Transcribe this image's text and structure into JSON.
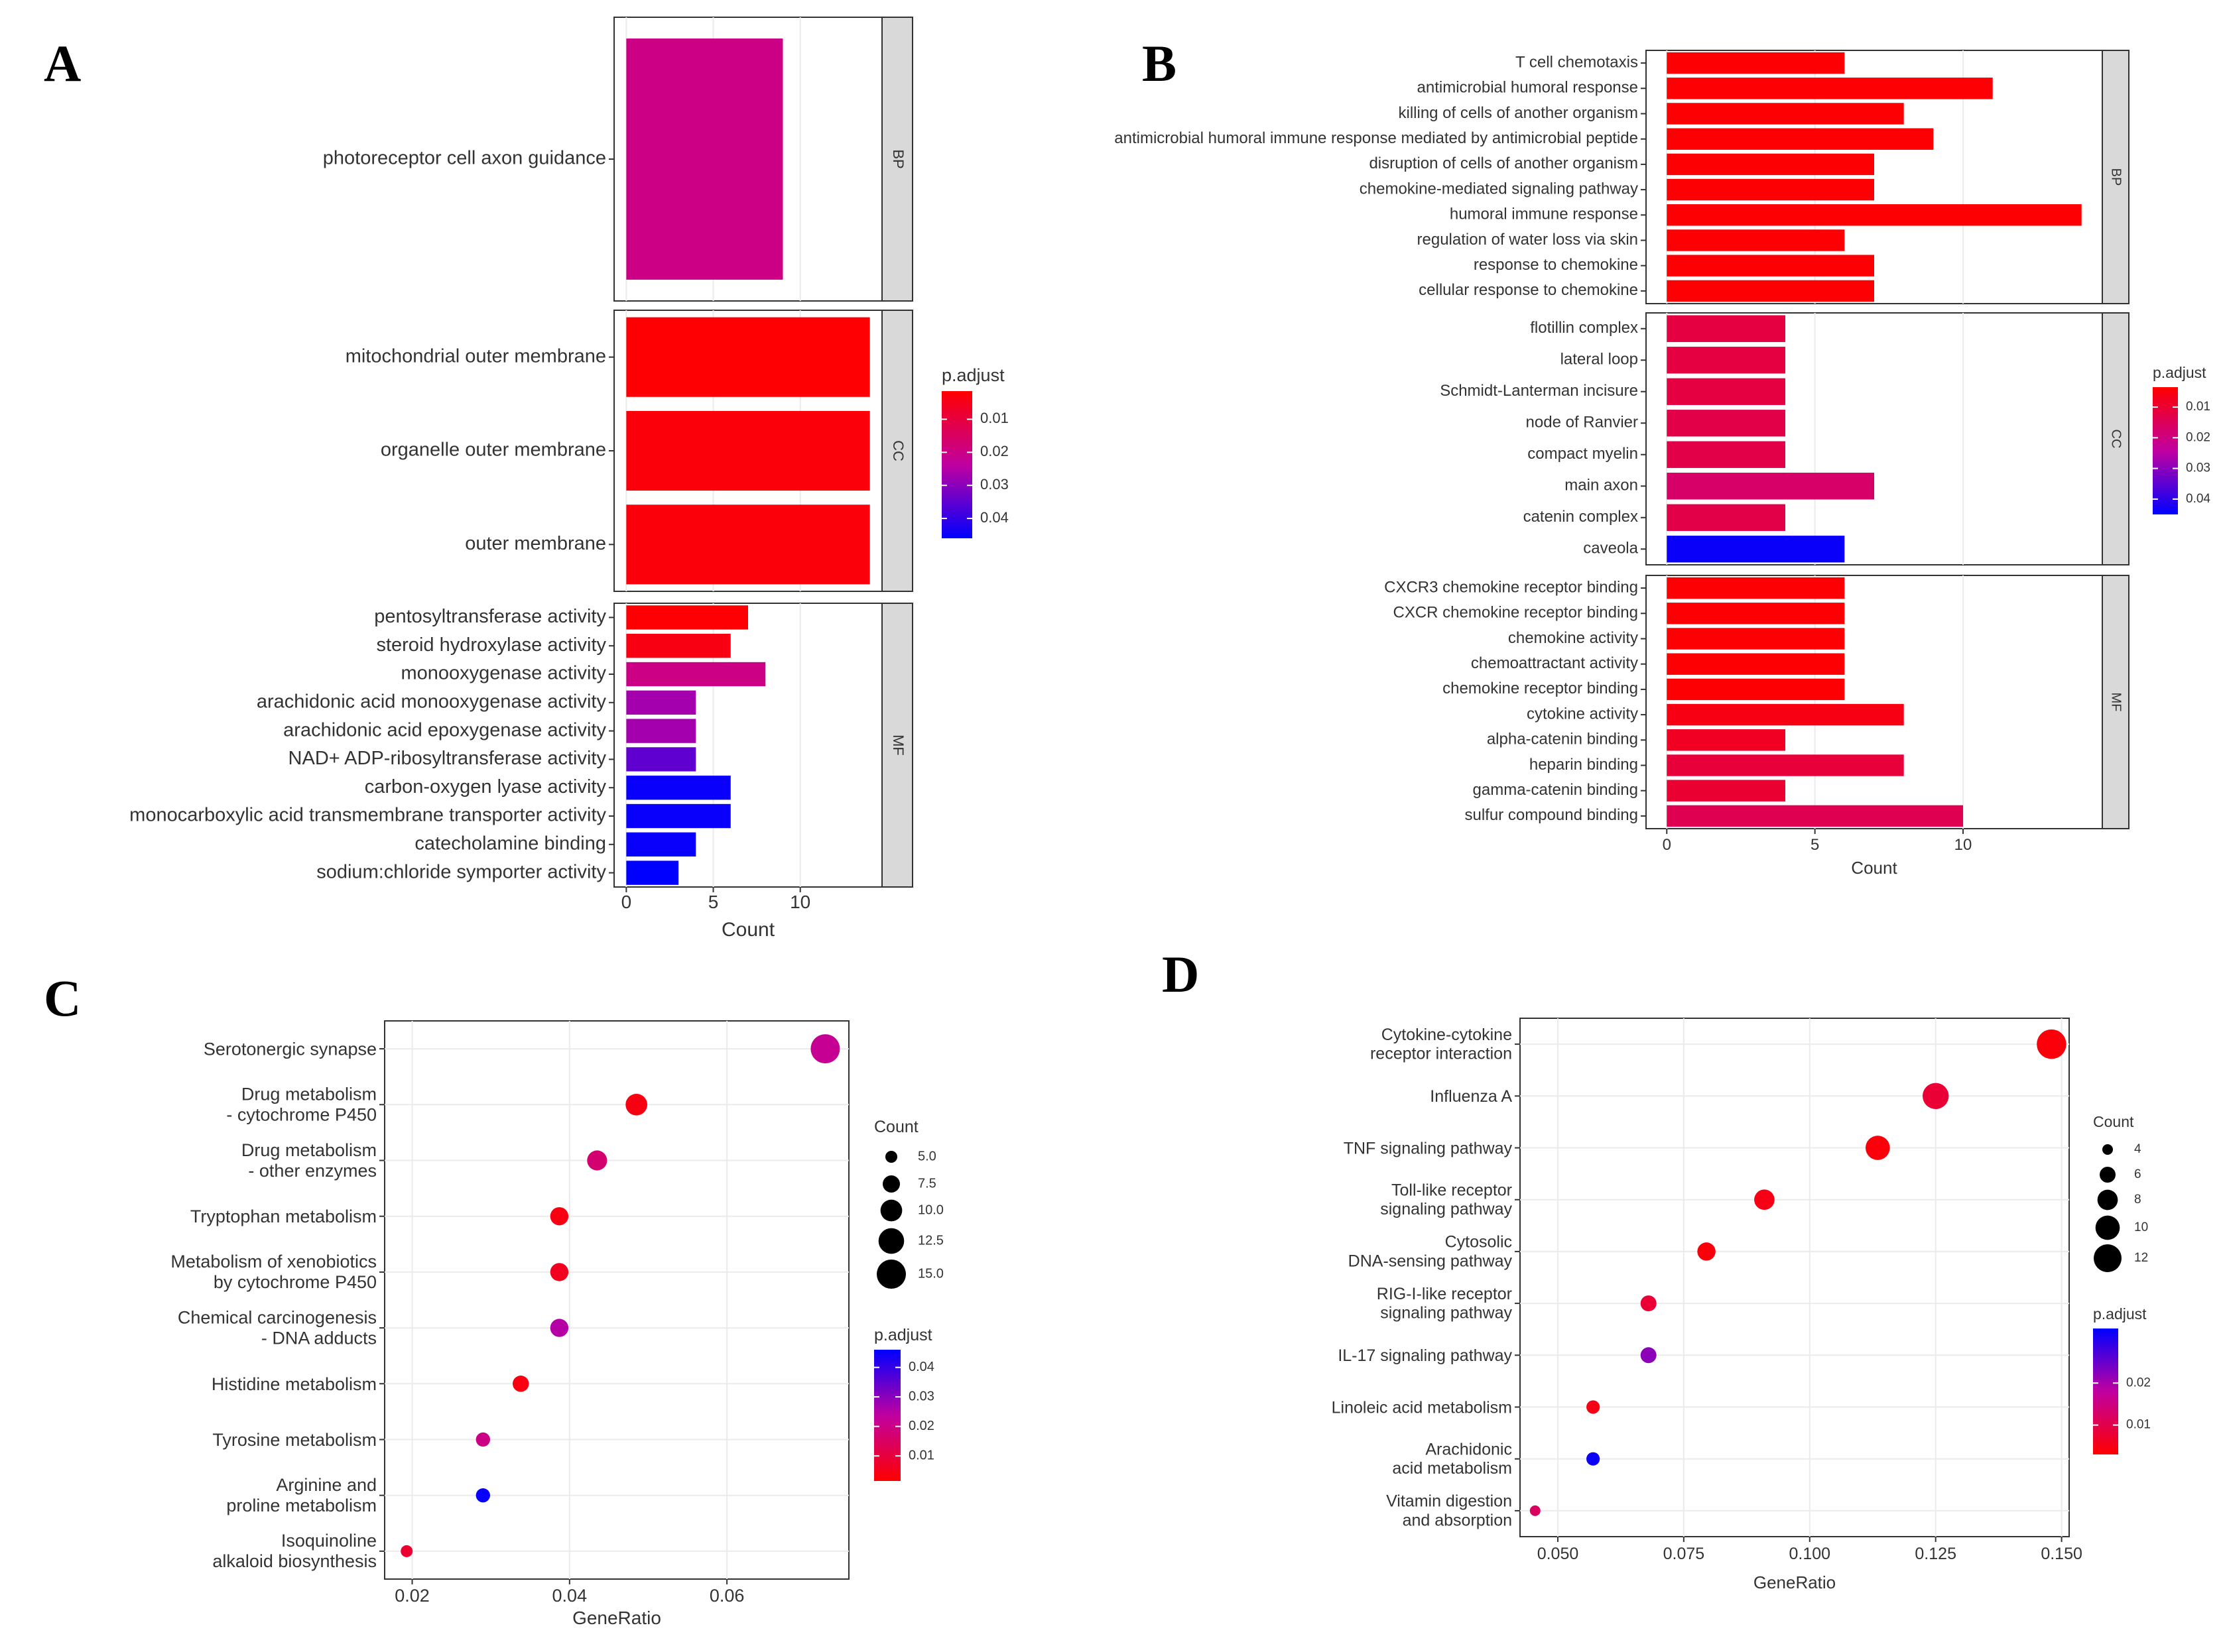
{
  "colors": {
    "red": "#ff0000",
    "mid": "#c000a0",
    "blue": "#0000ff",
    "grid": "#ebebeb",
    "strip": "#d9d9d9"
  },
  "chart_data": [
    {
      "panel": "A",
      "type": "bar",
      "orientation": "horizontal",
      "facets": [
        {
          "label": "BP",
          "items": [
            {
              "term": "photoreceptor cell axon guidance",
              "count": 9,
              "p_adjust": 0.02
            }
          ]
        },
        {
          "label": "CC",
          "items": [
            {
              "term": "mitochondrial outer membrane",
              "count": 14,
              "p_adjust": 0.002
            },
            {
              "term": "organelle outer membrane",
              "count": 14,
              "p_adjust": 0.003
            },
            {
              "term": "outer membrane",
              "count": 14,
              "p_adjust": 0.003
            }
          ]
        },
        {
          "label": "MF",
          "items": [
            {
              "term": "pentosyltransferase activity",
              "count": 7,
              "p_adjust": 0.002
            },
            {
              "term": "steroid hydroxylase activity",
              "count": 6,
              "p_adjust": 0.004
            },
            {
              "term": "monooxygenase activity",
              "count": 8,
              "p_adjust": 0.02
            },
            {
              "term": "arachidonic acid monooxygenase activity",
              "count": 4,
              "p_adjust": 0.027
            },
            {
              "term": "arachidonic acid epoxygenase activity",
              "count": 4,
              "p_adjust": 0.027
            },
            {
              "term": "NAD+ ADP-ribosyltransferase activity",
              "count": 4,
              "p_adjust": 0.035
            },
            {
              "term": "carbon-oxygen lyase activity",
              "count": 6,
              "p_adjust": 0.045
            },
            {
              "term": "monocarboxylic acid transmembrane transporter activity",
              "count": 6,
              "p_adjust": 0.045
            },
            {
              "term": "catecholamine binding",
              "count": 4,
              "p_adjust": 0.045
            },
            {
              "term": "sodium:chloride symporter activity",
              "count": 3,
              "p_adjust": 0.046
            }
          ]
        }
      ],
      "xlabel": "Count",
      "xticks": [
        0,
        5,
        10
      ],
      "xlim": [
        -0.7,
        14.7
      ],
      "legend": {
        "title": "p.adjust",
        "ticks": [
          "0.01",
          "0.02",
          "0.03",
          "0.04"
        ],
        "range": [
          0.0015,
          0.046
        ],
        "position": "right"
      }
    },
    {
      "panel": "B",
      "type": "bar",
      "orientation": "horizontal",
      "facets": [
        {
          "label": "BP",
          "items": [
            {
              "term": "T cell chemotaxis",
              "count": 6,
              "p_adjust": 0.004
            },
            {
              "term": "antimicrobial humoral response",
              "count": 11,
              "p_adjust": 0.004
            },
            {
              "term": "killing of cells of another organism",
              "count": 8,
              "p_adjust": 0.004
            },
            {
              "term": "antimicrobial humoral immune response mediated by antimicrobial peptide",
              "count": 9,
              "p_adjust": 0.004
            },
            {
              "term": "disruption of cells of another organism",
              "count": 7,
              "p_adjust": 0.004
            },
            {
              "term": "chemokine-mediated signaling pathway",
              "count": 7,
              "p_adjust": 0.004
            },
            {
              "term": "humoral immune response",
              "count": 14,
              "p_adjust": 0.004
            },
            {
              "term": "regulation of water loss via skin",
              "count": 6,
              "p_adjust": 0.004
            },
            {
              "term": "response to chemokine",
              "count": 7,
              "p_adjust": 0.004
            },
            {
              "term": "cellular response to chemokine",
              "count": 7,
              "p_adjust": 0.004
            }
          ]
        },
        {
          "label": "CC",
          "items": [
            {
              "term": "flotillin complex",
              "count": 4,
              "p_adjust": 0.012
            },
            {
              "term": "lateral loop",
              "count": 4,
              "p_adjust": 0.012
            },
            {
              "term": "Schmidt-Lanterman incisure",
              "count": 4,
              "p_adjust": 0.012
            },
            {
              "term": "node of Ranvier",
              "count": 4,
              "p_adjust": 0.013
            },
            {
              "term": "compact myelin",
              "count": 4,
              "p_adjust": 0.013
            },
            {
              "term": "main axon",
              "count": 7,
              "p_adjust": 0.017
            },
            {
              "term": "catenin complex",
              "count": 4,
              "p_adjust": 0.013
            },
            {
              "term": "caveola",
              "count": 6,
              "p_adjust": 0.044
            }
          ]
        },
        {
          "label": "MF",
          "items": [
            {
              "term": "CXCR3 chemokine receptor binding",
              "count": 6,
              "p_adjust": 0.004
            },
            {
              "term": "CXCR chemokine receptor binding",
              "count": 6,
              "p_adjust": 0.004
            },
            {
              "term": "chemokine activity",
              "count": 6,
              "p_adjust": 0.004
            },
            {
              "term": "chemoattractant activity",
              "count": 6,
              "p_adjust": 0.004
            },
            {
              "term": "chemokine receptor binding",
              "count": 6,
              "p_adjust": 0.004
            },
            {
              "term": "cytokine activity",
              "count": 8,
              "p_adjust": 0.006
            },
            {
              "term": "alpha-catenin binding",
              "count": 4,
              "p_adjust": 0.008
            },
            {
              "term": "heparin binding",
              "count": 8,
              "p_adjust": 0.011
            },
            {
              "term": "gamma-catenin binding",
              "count": 4,
              "p_adjust": 0.01
            },
            {
              "term": "sulfur compound binding",
              "count": 10,
              "p_adjust": 0.014
            }
          ]
        }
      ],
      "xlabel": "Count",
      "xticks": [
        0,
        5,
        10
      ],
      "xlim": [
        -0.7,
        14.7
      ],
      "legend": {
        "title": "p.adjust",
        "ticks": [
          "0.01",
          "0.02",
          "0.03",
          "0.04"
        ],
        "range": [
          0.0035,
          0.045
        ],
        "position": "right"
      }
    },
    {
      "panel": "C",
      "type": "scatter",
      "items": [
        {
          "term": "Serotonergic synapse",
          "gene_ratio": 0.0725,
          "count": 15,
          "p_adjust": 0.022
        },
        {
          "term": "Drug metabolism - cytochrome P450",
          "gene_ratio": 0.0485,
          "count": 10,
          "p_adjust": 0.004
        },
        {
          "term": "Drug metabolism - other enzymes",
          "gene_ratio": 0.0435,
          "count": 9,
          "p_adjust": 0.017
        },
        {
          "term": "Tryptophan metabolism",
          "gene_ratio": 0.0387,
          "count": 8,
          "p_adjust": 0.004
        },
        {
          "term": "Metabolism of xenobiotics by cytochrome P450",
          "gene_ratio": 0.0387,
          "count": 8,
          "p_adjust": 0.006
        },
        {
          "term": "Chemical carcinogenesis - DNA adducts",
          "gene_ratio": 0.0387,
          "count": 8,
          "p_adjust": 0.025
        },
        {
          "term": "Histidine metabolism",
          "gene_ratio": 0.0338,
          "count": 7,
          "p_adjust": 0.004
        },
        {
          "term": "Tyrosine metabolism",
          "gene_ratio": 0.029,
          "count": 6,
          "p_adjust": 0.02
        },
        {
          "term": "Arginine and proline metabolism",
          "gene_ratio": 0.029,
          "count": 6,
          "p_adjust": 0.045
        },
        {
          "term": "Isoquinoline alkaloid biosynthesis",
          "gene_ratio": 0.0193,
          "count": 4,
          "p_adjust": 0.008
        }
      ],
      "xlabel": "GeneRatio",
      "xticks": [
        0.02,
        0.04,
        0.06
      ],
      "xlim": [
        0.0165,
        0.0755
      ],
      "size_legend": {
        "title": "Count",
        "values": [
          5.0,
          7.5,
          10.0,
          12.5,
          15.0
        ],
        "labels": [
          "5.0",
          "7.5",
          "10.0",
          "12.5",
          "15.0"
        ]
      },
      "color_legend": {
        "title": "p.adjust",
        "ticks": [
          "0.04",
          "0.03",
          "0.02",
          "0.01"
        ],
        "range": [
          0.0015,
          0.046
        ],
        "position": "right"
      }
    },
    {
      "panel": "D",
      "type": "scatter",
      "items": [
        {
          "term": "Cytokine-cytokine receptor interaction",
          "gene_ratio": 0.148,
          "count": 13,
          "p_adjust": 0.004
        },
        {
          "term": "Influenza A",
          "gene_ratio": 0.125,
          "count": 11,
          "p_adjust": 0.008
        },
        {
          "term": "TNF signaling pathway",
          "gene_ratio": 0.1135,
          "count": 10,
          "p_adjust": 0.004
        },
        {
          "term": "Toll-like receptor signaling pathway",
          "gene_ratio": 0.091,
          "count": 8,
          "p_adjust": 0.005
        },
        {
          "term": "Cytosolic DNA-sensing pathway",
          "gene_ratio": 0.0795,
          "count": 7,
          "p_adjust": 0.004
        },
        {
          "term": "RIG-I-like receptor signaling pathway",
          "gene_ratio": 0.068,
          "count": 6,
          "p_adjust": 0.008
        },
        {
          "term": "IL-17 signaling pathway",
          "gene_ratio": 0.068,
          "count": 6,
          "p_adjust": 0.022
        },
        {
          "term": "Linoleic acid metabolism",
          "gene_ratio": 0.057,
          "count": 5,
          "p_adjust": 0.005
        },
        {
          "term": "Arachidonic acid metabolism",
          "gene_ratio": 0.057,
          "count": 5,
          "p_adjust": 0.032
        },
        {
          "term": "Vitamin digestion and absorption",
          "gene_ratio": 0.0455,
          "count": 4,
          "p_adjust": 0.012
        }
      ],
      "xlabel": "GeneRatio",
      "xticks": [
        0.05,
        0.075,
        0.1,
        0.125,
        0.15
      ],
      "xticklabels": [
        "0.050",
        "0.075",
        "0.100",
        "0.125",
        "0.150"
      ],
      "xlim": [
        0.0425,
        0.1515
      ],
      "size_legend": {
        "title": "Count",
        "values": [
          4,
          6,
          8,
          10,
          12
        ],
        "labels": [
          "4",
          "6",
          "8",
          "10",
          "12"
        ]
      },
      "color_legend": {
        "title": "p.adjust",
        "ticks": [
          "0.02",
          "0.01"
        ],
        "range": [
          0.003,
          0.033
        ],
        "position": "right"
      }
    }
  ]
}
